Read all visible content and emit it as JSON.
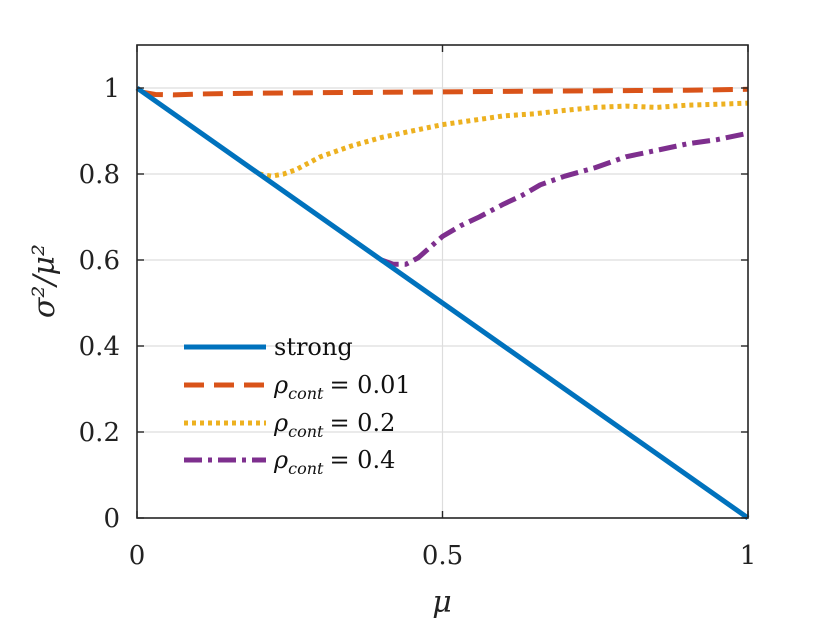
{
  "chart_data": {
    "type": "line",
    "title": "",
    "xlabel": "μ",
    "ylabel": "σ²/μ²",
    "xlim": [
      0,
      1
    ],
    "ylim": [
      0,
      1.1
    ],
    "grid": true,
    "legend_position": "bottom-left",
    "x_ticks": [
      0,
      0.5,
      1
    ],
    "x_tick_labels": [
      "0",
      "0.5",
      "1"
    ],
    "y_ticks": [
      0,
      0.2,
      0.4,
      0.6,
      0.8,
      1
    ],
    "y_tick_labels": [
      "0",
      "0.2",
      "0.4",
      "0.6",
      "0.8",
      "1"
    ],
    "series": [
      {
        "name": "strong",
        "legend_text": "strong",
        "color": "#0072BD",
        "style": "solid",
        "x": [
          0,
          1
        ],
        "y": [
          1,
          0
        ]
      },
      {
        "name": "rho_cont = 0.01",
        "legend_symbol": "ρ",
        "legend_sub": "cont",
        "legend_value": "= 0.01",
        "color": "#D95319",
        "style": "dashed",
        "x": [
          0.01,
          0.03,
          0.06,
          0.1,
          0.15,
          0.2,
          0.3,
          0.4,
          0.5,
          0.6,
          0.7,
          0.8,
          0.9,
          1.0
        ],
        "y": [
          0.99,
          0.985,
          0.984,
          0.986,
          0.987,
          0.988,
          0.989,
          0.99,
          0.991,
          0.992,
          0.993,
          0.994,
          0.995,
          0.997
        ]
      },
      {
        "name": "rho_cont = 0.2",
        "legend_symbol": "ρ",
        "legend_sub": "cont",
        "legend_value": "= 0.2",
        "color": "#EDB120",
        "style": "dotted",
        "x": [
          0.2,
          0.22,
          0.24,
          0.26,
          0.28,
          0.3,
          0.35,
          0.4,
          0.45,
          0.5,
          0.55,
          0.6,
          0.65,
          0.7,
          0.75,
          0.8,
          0.85,
          0.9,
          0.95,
          1.0
        ],
        "y": [
          0.8,
          0.795,
          0.8,
          0.81,
          0.825,
          0.84,
          0.865,
          0.885,
          0.9,
          0.915,
          0.925,
          0.935,
          0.94,
          0.948,
          0.955,
          0.958,
          0.955,
          0.96,
          0.962,
          0.965
        ]
      },
      {
        "name": "rho_cont = 0.4",
        "legend_symbol": "ρ",
        "legend_sub": "cont",
        "legend_value": "= 0.4",
        "color": "#7E2F8E",
        "style": "dashdot",
        "x": [
          0.4,
          0.42,
          0.44,
          0.46,
          0.48,
          0.5,
          0.53,
          0.56,
          0.6,
          0.63,
          0.66,
          0.7,
          0.75,
          0.8,
          0.85,
          0.9,
          0.95,
          1.0
        ],
        "y": [
          0.6,
          0.59,
          0.59,
          0.605,
          0.63,
          0.655,
          0.68,
          0.7,
          0.73,
          0.75,
          0.775,
          0.795,
          0.815,
          0.84,
          0.855,
          0.87,
          0.88,
          0.895
        ]
      }
    ]
  }
}
